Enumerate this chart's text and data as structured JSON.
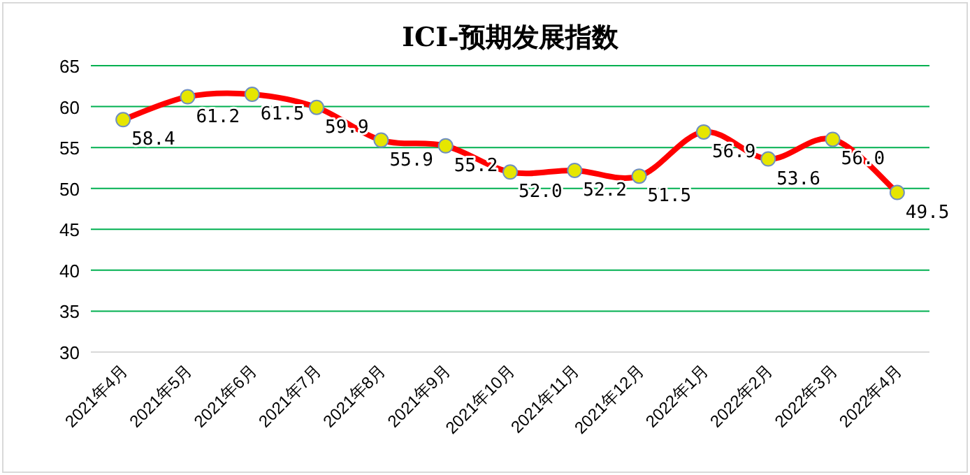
{
  "chart_data": {
    "type": "line",
    "title": "ICI-预期发展指数",
    "categories": [
      "2021年4月",
      "2021年5月",
      "2021年6月",
      "2021年7月",
      "2021年8月",
      "2021年9月",
      "2021年10月",
      "2021年11月",
      "2021年12月",
      "2022年1月",
      "2022年2月",
      "2022年3月",
      "2022年4月"
    ],
    "series": [
      {
        "color": "#ff0000",
        "values": [
          58.4,
          61.2,
          61.5,
          59.9,
          55.9,
          55.2,
          52.0,
          52.2,
          51.5,
          56.9,
          53.6,
          56.0,
          49.5
        ],
        "value_labels": [
          "58.4",
          "61.2",
          "61.5",
          "59.9",
          "55.9",
          "55.2",
          "52.0",
          "52.2",
          "51.5",
          "56.9",
          "53.6",
          "56.0",
          "49.5"
        ]
      }
    ],
    "ylim": [
      30,
      65
    ],
    "yticks": [
      30,
      35,
      40,
      45,
      50,
      55,
      60,
      65
    ],
    "grid": "y",
    "marker": "circle",
    "line_style": "solid"
  }
}
